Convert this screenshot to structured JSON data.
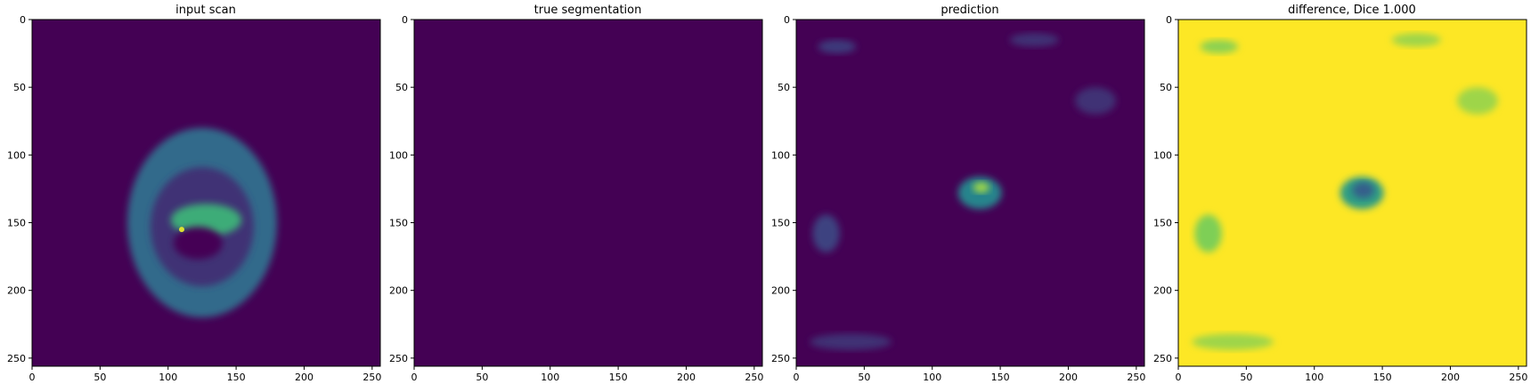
{
  "figure": {
    "panels": [
      {
        "title": "input scan"
      },
      {
        "title": "true segmentation"
      },
      {
        "title": "prediction"
      },
      {
        "title": "difference, Dice 1.000"
      }
    ]
  },
  "chart_data": [
    {
      "type": "heatmap",
      "title": "input scan",
      "colormap": "viridis",
      "x_ticks": [
        0,
        50,
        100,
        150,
        200,
        250
      ],
      "y_ticks": [
        0,
        50,
        100,
        150,
        200,
        250
      ],
      "xlim": [
        0,
        256
      ],
      "ylim": [
        256,
        0
      ],
      "features": [
        {
          "kind": "ellipse",
          "cx": 125,
          "cy": 150,
          "rx": 55,
          "ry": 70,
          "value": 0.35
        },
        {
          "kind": "ellipse",
          "cx": 125,
          "cy": 153,
          "rx": 38,
          "ry": 44,
          "value": 0.15
        },
        {
          "kind": "ellipse",
          "cx": 128,
          "cy": 148,
          "rx": 26,
          "ry": 12,
          "value": 0.62
        },
        {
          "kind": "ellipse",
          "cx": 122,
          "cy": 165,
          "rx": 18,
          "ry": 12,
          "value": 0.0
        },
        {
          "kind": "spot",
          "cx": 110,
          "cy": 155,
          "value": 0.95
        }
      ]
    },
    {
      "type": "heatmap",
      "title": "true segmentation",
      "colormap": "viridis",
      "x_ticks": [
        0,
        50,
        100,
        150,
        200,
        250
      ],
      "y_ticks": [
        0,
        50,
        100,
        150,
        200,
        250
      ],
      "xlim": [
        0,
        256
      ],
      "ylim": [
        256,
        0
      ],
      "uniform_value": 0.0
    },
    {
      "type": "heatmap",
      "title": "prediction",
      "colormap": "viridis",
      "x_ticks": [
        0,
        50,
        100,
        150,
        200,
        250
      ],
      "y_ticks": [
        0,
        50,
        100,
        150,
        200,
        250
      ],
      "xlim": [
        0,
        256
      ],
      "ylim": [
        256,
        0
      ],
      "features": [
        {
          "kind": "ellipse",
          "cx": 135,
          "cy": 128,
          "rx": 16,
          "ry": 12,
          "value": 0.45
        },
        {
          "kind": "ellipse",
          "cx": 136,
          "cy": 124,
          "rx": 6,
          "ry": 4,
          "value": 0.85
        },
        {
          "kind": "ellipse",
          "cx": 22,
          "cy": 158,
          "rx": 10,
          "ry": 14,
          "value": 0.2
        },
        {
          "kind": "ellipse",
          "cx": 30,
          "cy": 20,
          "rx": 14,
          "ry": 5,
          "value": 0.18
        },
        {
          "kind": "ellipse",
          "cx": 175,
          "cy": 15,
          "rx": 18,
          "ry": 5,
          "value": 0.15
        },
        {
          "kind": "ellipse",
          "cx": 220,
          "cy": 60,
          "rx": 15,
          "ry": 10,
          "value": 0.15
        },
        {
          "kind": "ellipse",
          "cx": 40,
          "cy": 238,
          "rx": 30,
          "ry": 6,
          "value": 0.15
        }
      ]
    },
    {
      "type": "heatmap",
      "title": "difference, Dice 1.000",
      "colormap": "viridis",
      "x_ticks": [
        0,
        50,
        100,
        150,
        200,
        250
      ],
      "y_ticks": [
        0,
        50,
        100,
        150,
        200,
        250
      ],
      "xlim": [
        0,
        256
      ],
      "ylim": [
        256,
        0
      ],
      "uniform_value": 1.0,
      "features": [
        {
          "kind": "ellipse",
          "cx": 135,
          "cy": 128,
          "rx": 16,
          "ry": 12,
          "value": 0.55
        },
        {
          "kind": "ellipse",
          "cx": 136,
          "cy": 126,
          "rx": 8,
          "ry": 6,
          "value": 0.3
        },
        {
          "kind": "ellipse",
          "cx": 22,
          "cy": 158,
          "rx": 10,
          "ry": 14,
          "value": 0.8
        },
        {
          "kind": "ellipse",
          "cx": 30,
          "cy": 20,
          "rx": 14,
          "ry": 5,
          "value": 0.82
        },
        {
          "kind": "ellipse",
          "cx": 175,
          "cy": 15,
          "rx": 18,
          "ry": 5,
          "value": 0.85
        },
        {
          "kind": "ellipse",
          "cx": 220,
          "cy": 60,
          "rx": 15,
          "ry": 10,
          "value": 0.85
        },
        {
          "kind": "ellipse",
          "cx": 40,
          "cy": 238,
          "rx": 30,
          "ry": 6,
          "value": 0.85
        }
      ]
    }
  ]
}
